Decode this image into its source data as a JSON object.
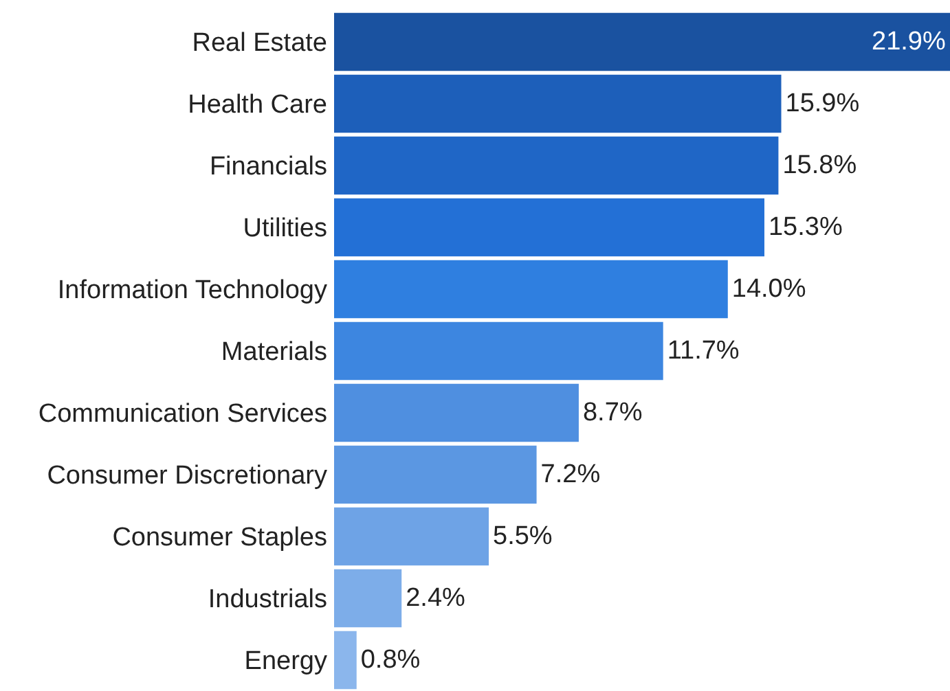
{
  "chart_data": {
    "type": "bar",
    "orientation": "horizontal",
    "categories": [
      "Real Estate",
      "Health Care",
      "Financials",
      "Utilities",
      "Information Technology",
      "Materials",
      "Communication Services",
      "Consumer Discretionary",
      "Consumer Staples",
      "Industrials",
      "Energy"
    ],
    "values": [
      21.9,
      15.9,
      15.8,
      15.3,
      14.0,
      11.7,
      8.7,
      7.2,
      5.5,
      2.4,
      0.8
    ],
    "colors": [
      "#1a52a0",
      "#1d5fba",
      "#1f66c6",
      "#2370d6",
      "#2f7fe0",
      "#3d86e0",
      "#4f8fe0",
      "#5b97e2",
      "#6ea3e6",
      "#7dade9",
      "#8bb6ec"
    ],
    "value_labels": [
      "21.9%",
      "15.9%",
      "15.8%",
      "15.3%",
      "14.0%",
      "11.7%",
      "8.7%",
      "7.2%",
      "5.5%",
      "2.4%",
      "0.8%"
    ]
  }
}
